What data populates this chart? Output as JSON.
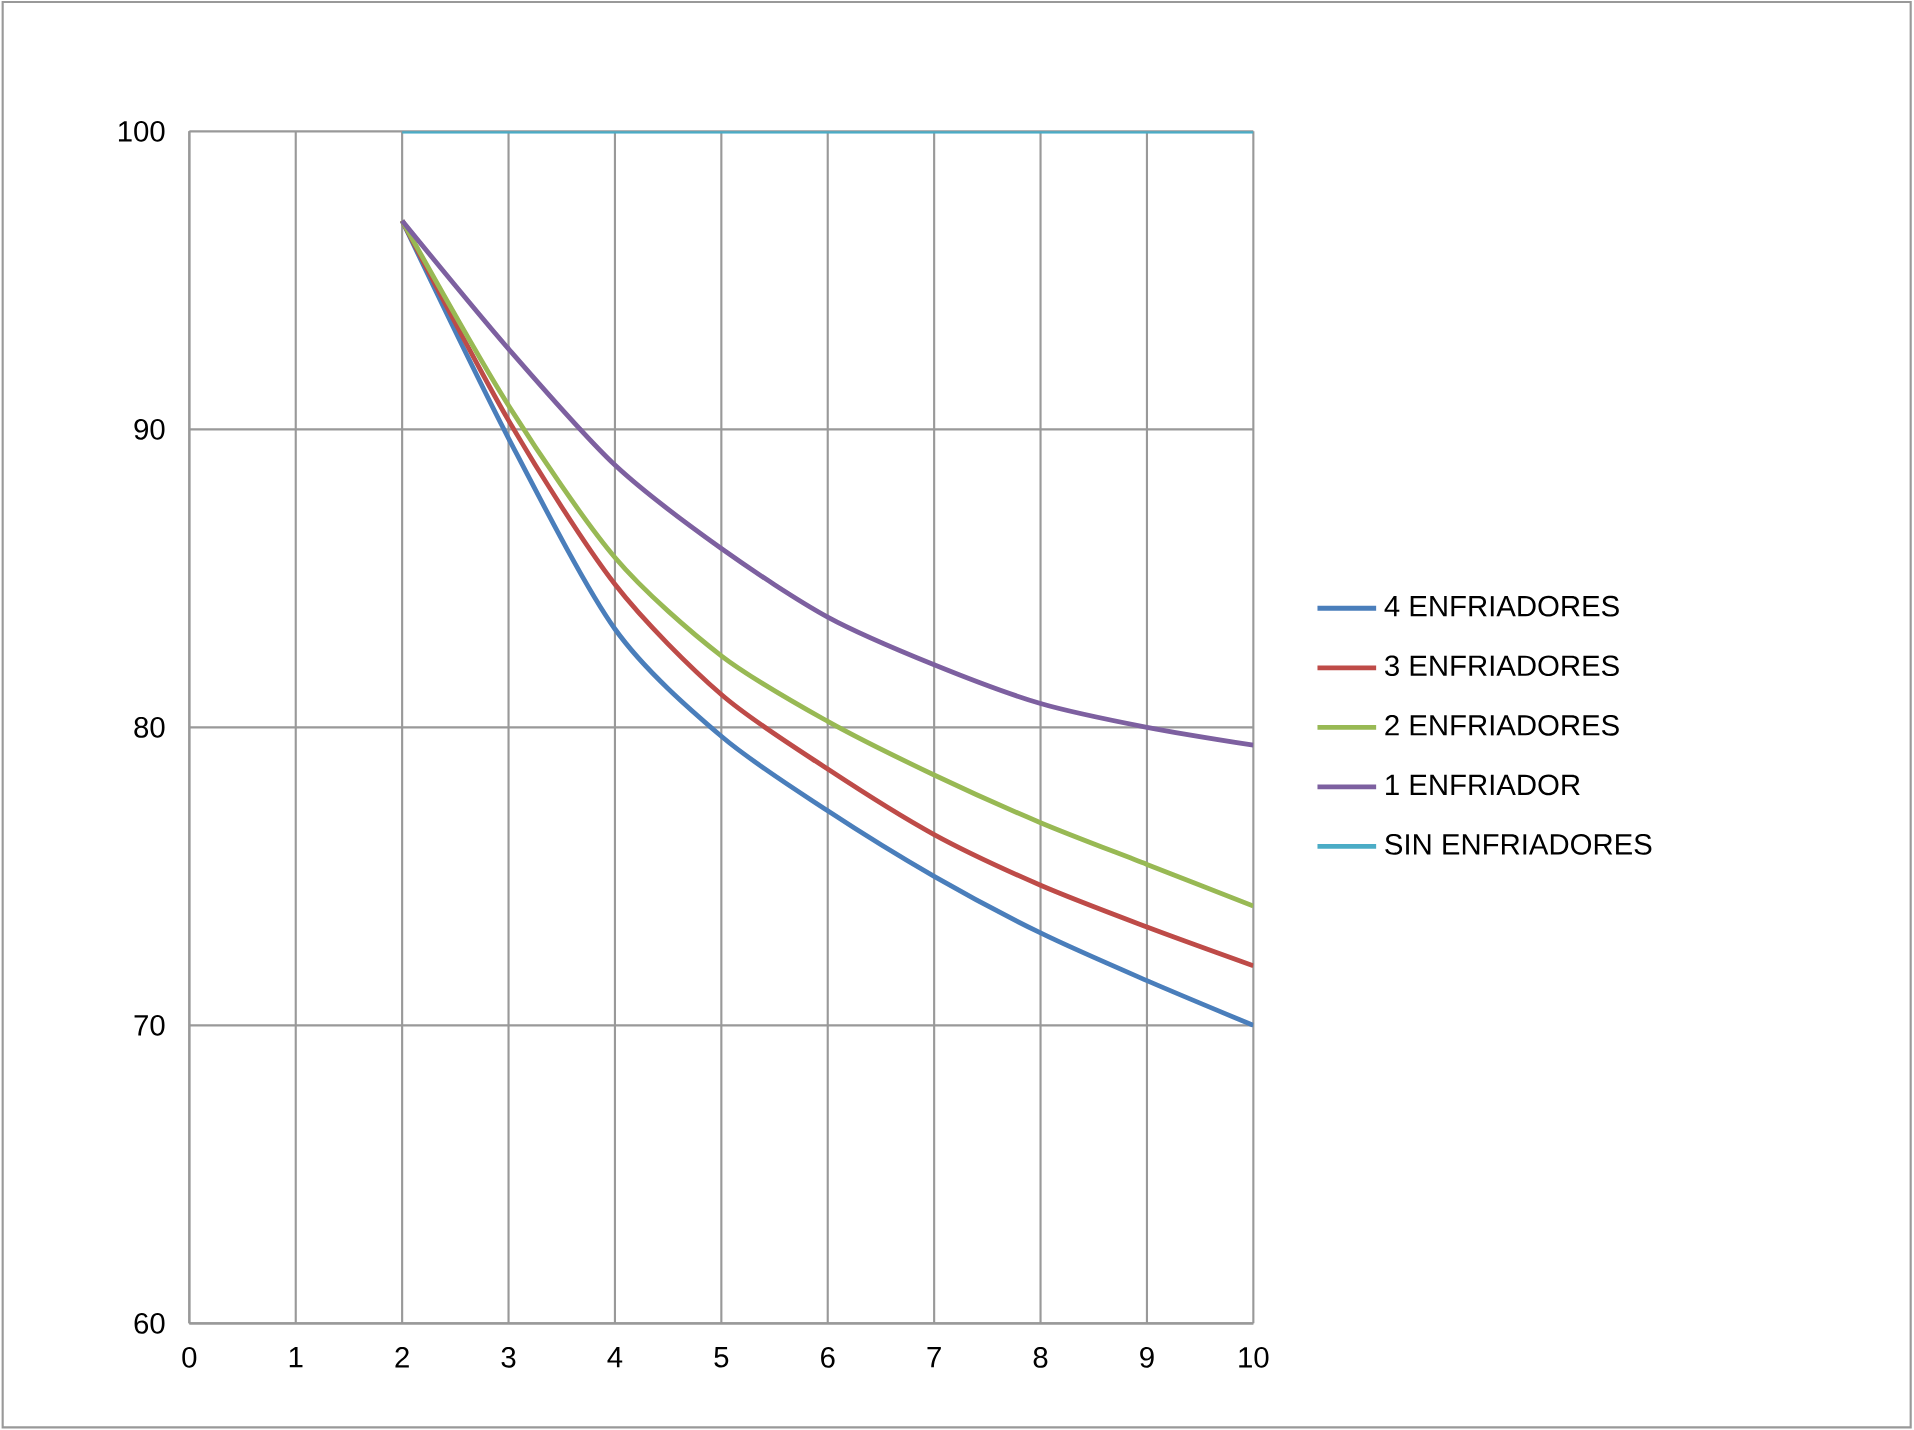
{
  "chart_data": {
    "type": "line",
    "x": [
      2,
      3,
      4,
      5,
      6,
      7,
      8,
      9,
      10
    ],
    "series": [
      {
        "name": "4 ENFRIADORES",
        "color": "#4a7ebb",
        "values": [
          97.0,
          89.7,
          83.3,
          79.7,
          77.2,
          75.0,
          73.1,
          71.5,
          70.0
        ]
      },
      {
        "name": "3 ENFRIADORES",
        "color": "#be4b48",
        "values": [
          97.0,
          90.3,
          84.8,
          81.1,
          78.6,
          76.4,
          74.7,
          73.3,
          72.0
        ]
      },
      {
        "name": "2 ENFRIADORES",
        "color": "#98b954",
        "values": [
          97.0,
          90.8,
          85.7,
          82.4,
          80.2,
          78.4,
          76.8,
          75.4,
          74.0
        ]
      },
      {
        "name": "1 ENFRIADOR",
        "color": "#7d60a0",
        "values": [
          97.0,
          92.7,
          88.8,
          86.0,
          83.7,
          82.1,
          80.8,
          80.0,
          79.4
        ]
      },
      {
        "name": "SIN ENFRIADORES",
        "color": "#4bacc6",
        "values": [
          100,
          100,
          100,
          100,
          100,
          100,
          100,
          100,
          100
        ]
      }
    ],
    "xlim": [
      0,
      10
    ],
    "xticks": [
      0,
      1,
      2,
      3,
      4,
      5,
      6,
      7,
      8,
      9,
      10
    ],
    "ylim": [
      60,
      100
    ],
    "yticks": [
      60,
      70,
      80,
      90,
      100
    ],
    "grid": true,
    "legend": "right",
    "marker": "none",
    "line_style": "solid"
  }
}
